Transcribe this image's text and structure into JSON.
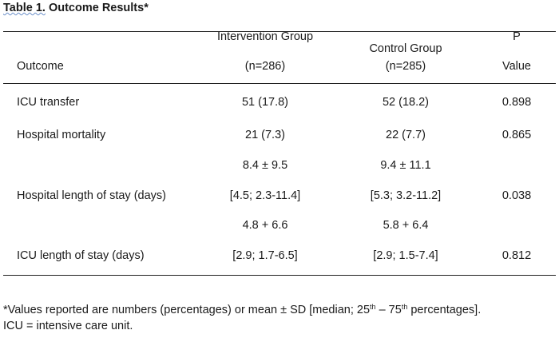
{
  "table": {
    "title_label": "Table 1.",
    "title_text": "Outcome Results*",
    "header": {
      "outcome": "Outcome",
      "intervention_line1": "Intervention Group",
      "intervention_line2": "(n=286)",
      "control_line1": "Control Group",
      "control_line2": "(n=285)",
      "p_line1": "P",
      "p_line2": "Value"
    },
    "rows": [
      {
        "outcome": "ICU transfer",
        "intervention": "51 (17.8)",
        "control": "52 (18.2)",
        "p": "0.898"
      },
      {
        "outcome": "Hospital mortality",
        "intervention": "21 (7.3)",
        "control": "22 (7.7)",
        "p": "0.865"
      },
      {
        "outcome": "Hospital length of stay (days)",
        "intervention_mean": "8.4 ± 9.5",
        "intervention_median": "[4.5; 2.3-11.4]",
        "control_mean": "9.4 ± 11.1",
        "control_median": "[5.3; 3.2-11.2]",
        "p": "0.038"
      },
      {
        "outcome": "ICU length of stay (days)",
        "intervention_mean": "4.8 + 6.6",
        "intervention_median": "[2.9; 1.7-6.5]",
        "control_mean": "5.8 + 6.4",
        "control_median": "[2.9; 1.5-7.4]",
        "p": "0.812"
      }
    ]
  },
  "footnote": {
    "line1_part1": "*Values reported are numbers (percentages) or mean ± SD [median; 25",
    "sup1": "th",
    "line1_part2": " – 75",
    "sup2": "th",
    "line1_part3": " percentages].",
    "line2": "ICU = intensive care unit."
  }
}
